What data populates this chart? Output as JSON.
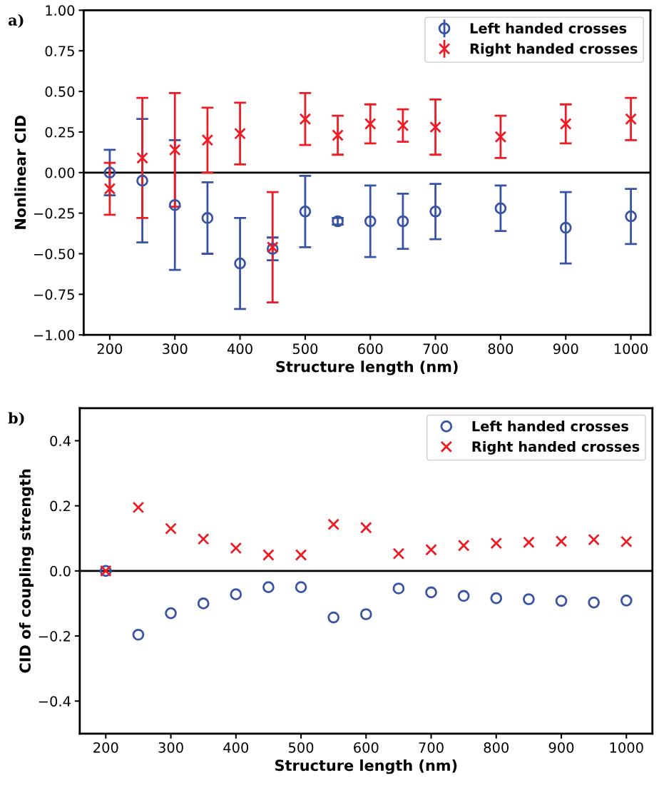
{
  "chart_data": [
    {
      "type": "scatter",
      "xlabel": "Structure length (nm)",
      "ylabel": "Nonlinear CID",
      "annotations": [
        "a)"
      ],
      "x": [
        200,
        250,
        300,
        350,
        400,
        450,
        500,
        550,
        600,
        650,
        700,
        800,
        900,
        1000
      ],
      "series": [
        {
          "name": "Left handed crosses",
          "color": "#3953a4",
          "marker": "circle",
          "values": [
            0.0,
            -0.05,
            -0.2,
            -0.28,
            -0.56,
            -0.47,
            -0.24,
            -0.3,
            -0.3,
            -0.3,
            -0.24,
            -0.22,
            -0.34,
            -0.27
          ],
          "errors": [
            0.14,
            0.38,
            0.4,
            0.22,
            0.28,
            0.07,
            0.22,
            0.02,
            0.22,
            0.17,
            0.17,
            0.14,
            0.22,
            0.17
          ]
        },
        {
          "name": "Right handed crosses",
          "color": "#ed1c24",
          "marker": "cross",
          "values": [
            -0.1,
            0.09,
            0.14,
            0.2,
            0.24,
            -0.46,
            0.33,
            0.23,
            0.3,
            0.29,
            0.28,
            0.22,
            0.3,
            0.33
          ],
          "errors": [
            0.16,
            0.37,
            0.35,
            0.2,
            0.19,
            0.34,
            0.16,
            0.12,
            0.12,
            0.1,
            0.17,
            0.13,
            0.12,
            0.13
          ]
        }
      ],
      "xlim": [
        160,
        1030
      ],
      "xticks": [
        200,
        300,
        400,
        500,
        600,
        700,
        800,
        900,
        1000
      ],
      "ylim": [
        -1.0,
        1.0
      ],
      "yticks": [
        {
          "value": -1.0,
          "label": "−1.00"
        },
        {
          "value": -0.75,
          "label": "−0.75"
        },
        {
          "value": -0.5,
          "label": "−0.50"
        },
        {
          "value": -0.25,
          "label": "−0.25"
        },
        {
          "value": 0,
          "label": "0.00"
        },
        {
          "value": 0.25,
          "label": "0.25"
        },
        {
          "value": 0.5,
          "label": "0.50"
        },
        {
          "value": 0.75,
          "label": "0.75"
        },
        {
          "value": 1.0,
          "label": "1.00"
        }
      ],
      "ref_lines": [
        {
          "axis": "y",
          "value": 0,
          "color": "#000000"
        }
      ],
      "legend": "top right",
      "grid": false
    },
    {
      "type": "scatter",
      "xlabel": "Structure length (nm)",
      "ylabel": "CID of coupling strength",
      "annotations": [
        "b)"
      ],
      "x": [
        200,
        250,
        300,
        350,
        400,
        450,
        500,
        550,
        600,
        650,
        700,
        750,
        800,
        850,
        900,
        950,
        1000
      ],
      "series": [
        {
          "name": "Left handed crosses",
          "color": "#3953a4",
          "marker": "circle",
          "values": [
            0.0,
            -0.196,
            -0.13,
            -0.1,
            -0.072,
            -0.05,
            -0.05,
            -0.143,
            -0.133,
            -0.054,
            -0.066,
            -0.077,
            -0.084,
            -0.087,
            -0.092,
            -0.097,
            -0.091
          ]
        },
        {
          "name": "Right handed crosses",
          "color": "#ed1c24",
          "marker": "cross",
          "values": [
            0.0,
            0.195,
            0.13,
            0.098,
            0.07,
            0.049,
            0.049,
            0.143,
            0.133,
            0.053,
            0.065,
            0.078,
            0.085,
            0.088,
            0.091,
            0.096,
            0.09
          ]
        }
      ],
      "xlim": [
        160,
        1040
      ],
      "xticks": [
        200,
        300,
        400,
        500,
        600,
        700,
        800,
        900,
        1000
      ],
      "ylim": [
        -0.5,
        0.5
      ],
      "yticks": [
        {
          "value": -0.4,
          "label": "−0.4"
        },
        {
          "value": -0.2,
          "label": "−0.2"
        },
        {
          "value": 0,
          "label": "0.0"
        },
        {
          "value": 0.2,
          "label": "0.2"
        },
        {
          "value": 0.4,
          "label": "0.4"
        }
      ],
      "ref_lines": [
        {
          "axis": "y",
          "value": 0,
          "color": "#000000"
        }
      ],
      "legend": "top right",
      "grid": false
    }
  ]
}
